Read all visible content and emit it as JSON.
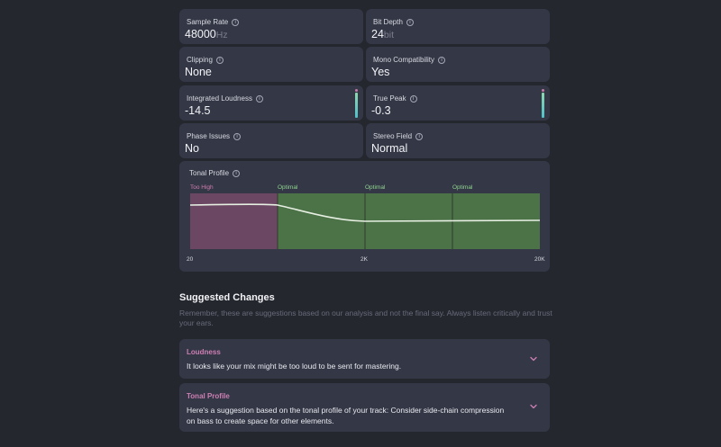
{
  "metrics": [
    {
      "label": "Sample Rate",
      "value": "48000",
      "unit": "Hz"
    },
    {
      "label": "Bit Depth",
      "value": "24",
      "unit": "bit"
    },
    {
      "label": "Clipping",
      "value": "None"
    },
    {
      "label": "Mono Compatibility",
      "value": "Yes"
    },
    {
      "label": "Integrated Loudness",
      "value": "-14.5"
    },
    {
      "label": "True Peak",
      "value": "-0.3"
    },
    {
      "label": "Phase Issues",
      "value": "No"
    },
    {
      "label": "Stereo Field",
      "value": "Normal"
    }
  ],
  "tonal_profile": {
    "label": "Tonal Profile",
    "bands": [
      {
        "status": "Too High",
        "color": "#d07fb0",
        "fill": "#6b4763"
      },
      {
        "status": "Optimal",
        "color": "#8fd48f",
        "fill": "#4c7248"
      },
      {
        "status": "Optimal",
        "color": "#8fd48f",
        "fill": "#4c7248"
      },
      {
        "status": "Optimal",
        "color": "#8fd48f",
        "fill": "#4c7248"
      }
    ],
    "x_labels": [
      "20",
      "2K",
      "20K"
    ]
  },
  "suggestions": {
    "title": "Suggested Changes",
    "description": "Remember, these are suggestions based on our analysis and not the final say. Always listen critically and trust your ears.",
    "items": [
      {
        "title": "Loudness",
        "text": "It looks like your mix might be too loud to be sent for mastering."
      },
      {
        "title": "Tonal Profile",
        "text": "Here's a suggestion based on the tonal profile of your track: Consider side-chain compression on bass to create space for other elements."
      }
    ]
  },
  "icons": {
    "info": "info-icon",
    "expand": "chevron-down-icon"
  },
  "colors": {
    "background": "#25272f",
    "card": "#343746",
    "accent_pink": "#cc7fb3",
    "optimal_green": "#8fd48f"
  }
}
